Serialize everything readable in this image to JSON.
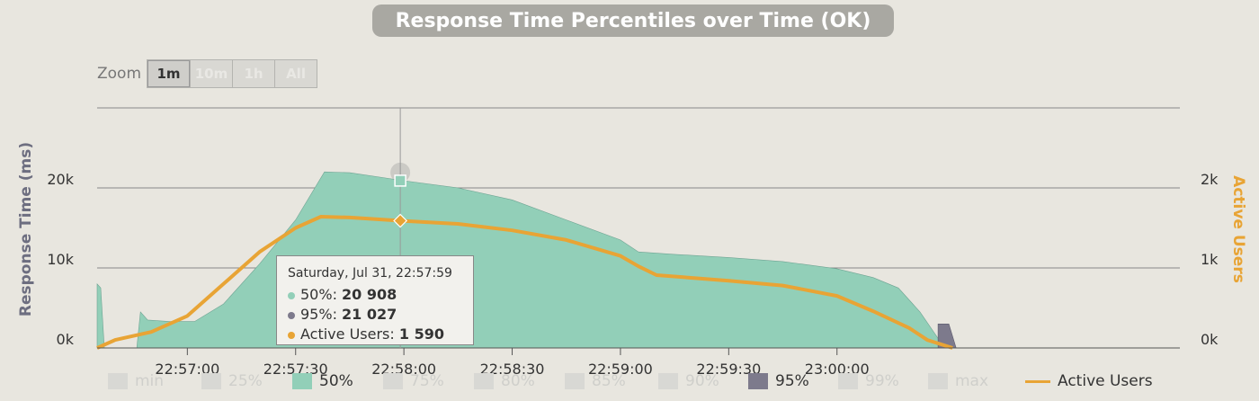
{
  "title": "Response Time Percentiles over Time (OK)",
  "zoom": {
    "label": "Zoom",
    "buttons": [
      "1m",
      "10m",
      "1h",
      "All"
    ],
    "active": "1m"
  },
  "colors": {
    "p50": "#92cfb8",
    "p95": "#7d7a8c",
    "users": "#e8a435",
    "grid": "#888888",
    "disabled": "#d8d8d4"
  },
  "chart_data": {
    "type": "area",
    "title": "Response Time Percentiles over Time (OK)",
    "ylabel": "Response Time (ms)",
    "y2label": "Active Users",
    "ylim": [
      0,
      30000
    ],
    "y2lim": [
      0,
      3000
    ],
    "yticks": [
      "0k",
      "10k",
      "20k"
    ],
    "y2ticks": [
      "0k",
      "1k",
      "2k"
    ],
    "xlim": [
      "22:56:35",
      "23:01:35"
    ],
    "xticks": [
      "22:57:00",
      "22:57:30",
      "22:58:00",
      "22:58:30",
      "22:59:00",
      "22:59:30",
      "23:00:00"
    ],
    "grid": true,
    "legend_position": "bottom",
    "legend": [
      {
        "name": "min",
        "enabled": false,
        "kind": "area"
      },
      {
        "name": "25%",
        "enabled": false,
        "kind": "area"
      },
      {
        "name": "50%",
        "enabled": true,
        "kind": "area"
      },
      {
        "name": "75%",
        "enabled": false,
        "kind": "area"
      },
      {
        "name": "80%",
        "enabled": false,
        "kind": "area"
      },
      {
        "name": "85%",
        "enabled": false,
        "kind": "area"
      },
      {
        "name": "90%",
        "enabled": false,
        "kind": "area"
      },
      {
        "name": "95%",
        "enabled": true,
        "kind": "area"
      },
      {
        "name": "99%",
        "enabled": false,
        "kind": "area"
      },
      {
        "name": "max",
        "enabled": false,
        "kind": "area"
      },
      {
        "name": "Active Users",
        "enabled": true,
        "kind": "line"
      }
    ],
    "series": [
      {
        "name": "50%",
        "axis": "left",
        "points": [
          [
            "22:56:35",
            8000
          ],
          [
            "22:56:36",
            7500
          ],
          [
            "22:56:37",
            0
          ],
          [
            "22:56:46",
            0
          ],
          [
            "22:56:47",
            4500
          ],
          [
            "22:56:49",
            3500
          ],
          [
            "22:56:55",
            3300
          ],
          [
            "22:57:02",
            3300
          ],
          [
            "22:57:10",
            5500
          ],
          [
            "22:57:20",
            10500
          ],
          [
            "22:57:30",
            16000
          ],
          [
            "22:57:38",
            22000
          ],
          [
            "22:57:45",
            21900
          ],
          [
            "22:58:00",
            20900
          ],
          [
            "22:58:15",
            20000
          ],
          [
            "22:58:30",
            18500
          ],
          [
            "22:58:45",
            16000
          ],
          [
            "22:59:00",
            13500
          ],
          [
            "22:59:05",
            12000
          ],
          [
            "22:59:15",
            11700
          ],
          [
            "22:59:30",
            11300
          ],
          [
            "22:59:45",
            10800
          ],
          [
            "23:00:00",
            9900
          ],
          [
            "23:00:10",
            8800
          ],
          [
            "23:00:17",
            7500
          ],
          [
            "23:00:23",
            4500
          ],
          [
            "23:00:28",
            1200
          ],
          [
            "23:00:32",
            0
          ]
        ]
      },
      {
        "name": "95%",
        "axis": "left",
        "points": [
          [
            "23:00:28",
            3000
          ],
          [
            "23:00:31",
            3000
          ],
          [
            "23:00:33",
            0
          ]
        ]
      },
      {
        "name": "Active Users",
        "axis": "right",
        "points": [
          [
            "22:56:35",
            0
          ],
          [
            "22:56:40",
            100
          ],
          [
            "22:56:50",
            200
          ],
          [
            "22:57:00",
            400
          ],
          [
            "22:57:10",
            800
          ],
          [
            "22:57:20",
            1200
          ],
          [
            "22:57:30",
            1500
          ],
          [
            "22:57:37",
            1640
          ],
          [
            "22:57:45",
            1630
          ],
          [
            "22:57:59",
            1590
          ],
          [
            "22:58:15",
            1550
          ],
          [
            "22:58:30",
            1470
          ],
          [
            "22:58:45",
            1350
          ],
          [
            "22:59:00",
            1150
          ],
          [
            "22:59:05",
            1020
          ],
          [
            "22:59:10",
            910
          ],
          [
            "22:59:30",
            840
          ],
          [
            "22:59:45",
            780
          ],
          [
            "23:00:00",
            650
          ],
          [
            "23:00:10",
            460
          ],
          [
            "23:00:20",
            250
          ],
          [
            "23:00:25",
            100
          ],
          [
            "23:00:32",
            0
          ]
        ]
      }
    ],
    "tooltip": {
      "title": "Saturday, Jul 31, 22:57:59",
      "rows": [
        {
          "name": "50%",
          "value": "20 908"
        },
        {
          "name": "95%",
          "value": "21 027"
        },
        {
          "name": "Active Users",
          "value": "1 590"
        }
      ]
    }
  }
}
